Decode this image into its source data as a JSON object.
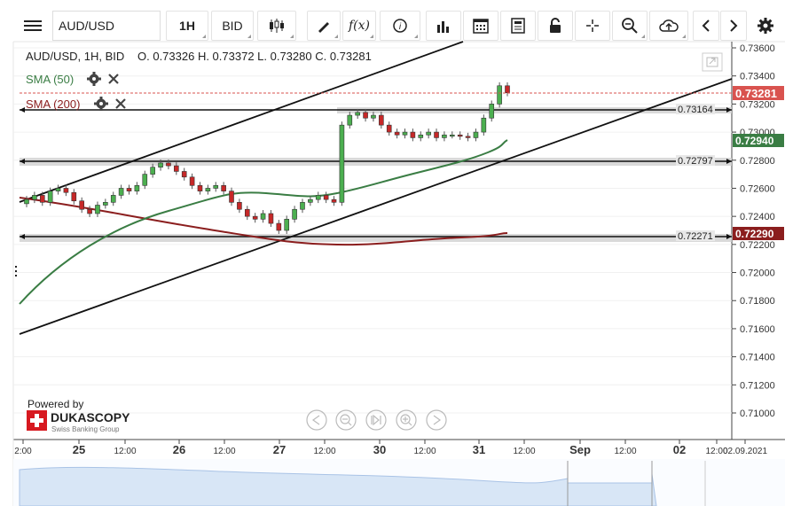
{
  "toolbar": {
    "instrument": "AUD/USD",
    "period": "1H",
    "side": "BID",
    "icons": [
      "menu-icon",
      "candlestick-icon",
      "pencil-icon",
      "function-icon",
      "info-icon",
      "bar-chart-icon",
      "calendar-icon",
      "sheet-icon",
      "lock-icon",
      "crosshair-icon",
      "zoom-icon",
      "cloud-upload-icon",
      "prev-icon",
      "next-icon",
      "gear-icon"
    ],
    "fx_label": "f(x)"
  },
  "header": {
    "title": "AUD/USD, 1H, BID",
    "ohlc": "O. 0.73326 H. 0.73372 L. 0.73280 C. 0.73281"
  },
  "indicators": [
    {
      "label": "SMA (50)",
      "color": "#3a7d44"
    },
    {
      "label": "SMA (200)",
      "color": "#8b1e1e"
    }
  ],
  "chart_data": {
    "type": "candlestick",
    "y_ticks": [
      "0.73600",
      "0.73400",
      "0.73200",
      "0.73000",
      "0.72800",
      "0.72600",
      "0.72400",
      "0.72200",
      "0.72000",
      "0.71800",
      "0.71600",
      "0.71400",
      "0.71200",
      "0.71000"
    ],
    "x_ticks": [
      "2:00",
      "25",
      "12:00",
      "26",
      "12:00",
      "27",
      "12:00",
      "30",
      "12:00",
      "31",
      "12:00",
      "Sep",
      "12:00",
      "02",
      "12:00",
      "02.09.2021"
    ],
    "price_badges": [
      {
        "value": "0.73281",
        "color": "#d9534f"
      },
      {
        "value": "0.72940",
        "color": "#3a7d44"
      },
      {
        "value": "0.72290",
        "color": "#8b1e1e"
      }
    ],
    "horizontal_levels": [
      "0.73164",
      "0.72797",
      "0.72271"
    ],
    "close_series": [
      0.7252,
      0.7255,
      0.725,
      0.7258,
      0.726,
      0.7257,
      0.7251,
      0.7245,
      0.7242,
      0.7248,
      0.725,
      0.7255,
      0.726,
      0.7258,
      0.7262,
      0.727,
      0.7275,
      0.7278,
      0.7276,
      0.7272,
      0.7268,
      0.7262,
      0.7258,
      0.726,
      0.7262,
      0.7258,
      0.725,
      0.7245,
      0.724,
      0.7238,
      0.7242,
      0.7235,
      0.723,
      0.7238,
      0.7245,
      0.725,
      0.7252,
      0.7255,
      0.7252,
      0.725,
      0.7305,
      0.7312,
      0.7314,
      0.731,
      0.7312,
      0.7305,
      0.73,
      0.7298,
      0.73,
      0.7296,
      0.7298,
      0.73,
      0.7296,
      0.7298,
      0.7298,
      0.7297,
      0.7296,
      0.73,
      0.731,
      0.732,
      0.7333,
      0.7328
    ]
  },
  "branding": {
    "powered_by": "Powered by",
    "name": "DUKASCOPY",
    "sub": "Swiss Banking Group"
  }
}
